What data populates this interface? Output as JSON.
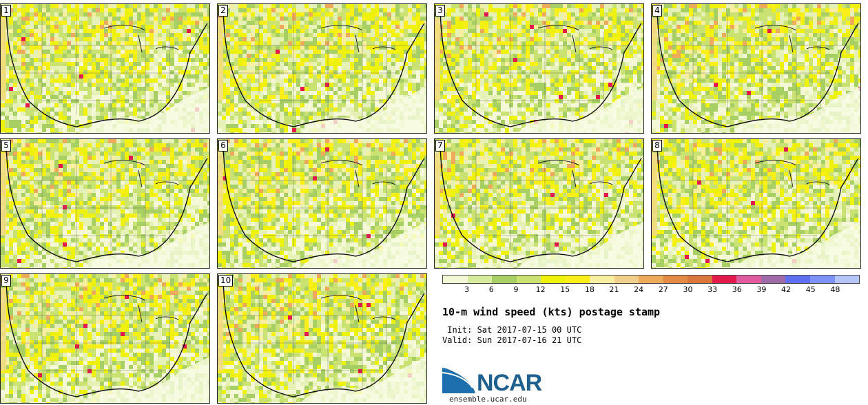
{
  "panels": [
    {
      "label": "1"
    },
    {
      "label": "2"
    },
    {
      "label": "3"
    },
    {
      "label": "4"
    },
    {
      "label": "5"
    },
    {
      "label": "6"
    },
    {
      "label": "7"
    },
    {
      "label": "8"
    },
    {
      "label": "9"
    },
    {
      "label": "10"
    }
  ],
  "colorbar": {
    "colors": [
      "#f4f8d6",
      "#d6eb9c",
      "#a8cf63",
      "#c9e272",
      "#eef20a",
      "#fbef1a",
      "#f8eea0",
      "#efcf8a",
      "#ecaa5a",
      "#e38a46",
      "#d9773e",
      "#e21a4c",
      "#e05aa0",
      "#a06aa8",
      "#5f6ff0",
      "#7e91f6",
      "#b5c5f7"
    ],
    "ticks": [
      "3",
      "6",
      "9",
      "12",
      "15",
      "18",
      "21",
      "24",
      "27",
      "30",
      "33",
      "36",
      "39",
      "42",
      "45",
      "48"
    ]
  },
  "title": "10-m wind speed (kts) postage stamp",
  "init": " Init: Sat 2017-07-15 00 UTC",
  "valid": "Valid: Sun 2017-07-16 21 UTC",
  "logo": {
    "text": "NCAR",
    "site": "ensemble.ucar.edu"
  }
}
